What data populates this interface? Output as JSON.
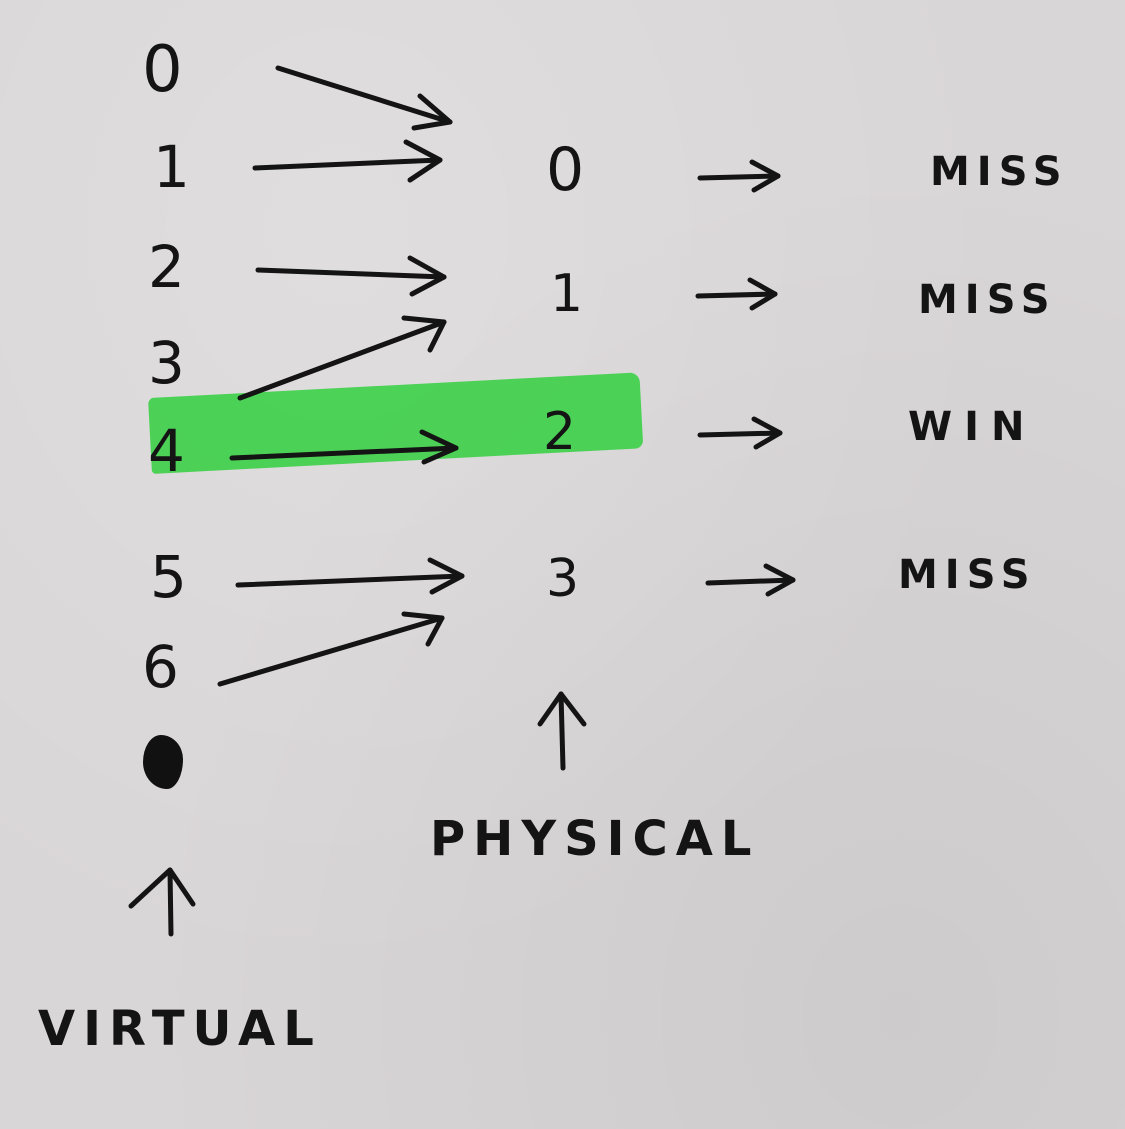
{
  "virtual": {
    "entries": [
      "0",
      "1",
      "2",
      "3",
      "4",
      "5",
      "6"
    ],
    "label": "VIRTUAL"
  },
  "physical": {
    "entries": [
      "0",
      "1",
      "2",
      "3"
    ],
    "label": "PHYSICAL"
  },
  "results": [
    "MISS",
    "MISS",
    "WIN",
    "MISS"
  ],
  "highlight": {
    "color": "#3fd04b",
    "virtual_entry": "4",
    "physical_entry": "2"
  },
  "mappings": [
    {
      "from": "0",
      "to": "0"
    },
    {
      "from": "1",
      "to": "0"
    },
    {
      "from": "2",
      "to": "1"
    },
    {
      "from": "3",
      "to": "1"
    },
    {
      "from": "4",
      "to": "2"
    },
    {
      "from": "5",
      "to": "3"
    },
    {
      "from": "6",
      "to": "3"
    }
  ],
  "ink_color": "#141414"
}
